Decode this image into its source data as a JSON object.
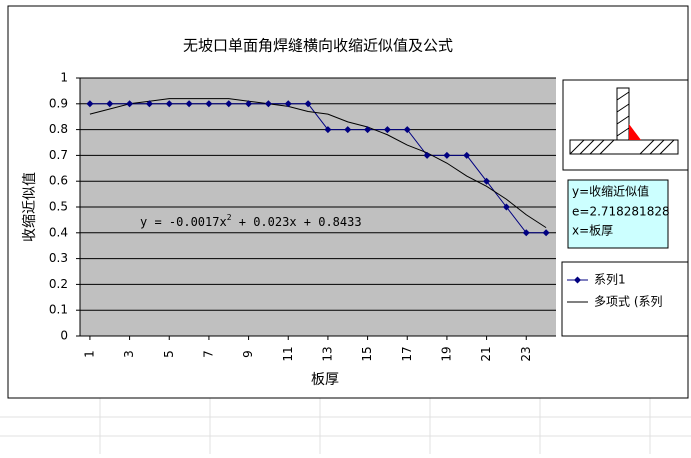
{
  "chart_data": {
    "type": "line",
    "title": "无坡口单面角焊缝横向收缩近似值及公式",
    "x_label": "板厚",
    "y_label": "收缩近似值",
    "x": [
      1,
      2,
      3,
      4,
      5,
      6,
      7,
      8,
      9,
      10,
      11,
      12,
      13,
      14,
      15,
      16,
      17,
      18,
      19,
      20,
      21,
      22,
      23,
      24
    ],
    "xlim": [
      0.5,
      24.5
    ],
    "xticks": [
      1,
      3,
      5,
      7,
      9,
      11,
      13,
      15,
      17,
      19,
      21,
      23
    ],
    "ylim": [
      0,
      1
    ],
    "yticks": [
      0,
      0.1,
      0.2,
      0.3,
      0.4,
      0.5,
      0.6,
      0.7,
      0.8,
      0.9,
      1
    ],
    "grid": true,
    "series": [
      {
        "name": "系列1",
        "color": "#000080",
        "marker": "diamond",
        "values": [
          0.9,
          0.9,
          0.9,
          0.9,
          0.9,
          0.9,
          0.9,
          0.9,
          0.9,
          0.9,
          0.9,
          0.9,
          0.8,
          0.8,
          0.8,
          0.8,
          0.8,
          0.7,
          0.7,
          0.7,
          0.6,
          0.5,
          0.4,
          0.4
        ]
      },
      {
        "name": "多项式 (系列",
        "color": "#000000",
        "marker": "none",
        "values": [
          0.86,
          0.88,
          0.9,
          0.91,
          0.92,
          0.92,
          0.92,
          0.92,
          0.91,
          0.9,
          0.89,
          0.87,
          0.86,
          0.83,
          0.81,
          0.78,
          0.74,
          0.71,
          0.67,
          0.62,
          0.58,
          0.53,
          0.47,
          0.42
        ]
      }
    ],
    "trendline_label": [
      "y = -0.0017x",
      "2",
      " + 0.023x + 0.8433"
    ],
    "info_lines": [
      "y=收缩近似值",
      "e=2.718281828",
      "x=板厚"
    ]
  }
}
